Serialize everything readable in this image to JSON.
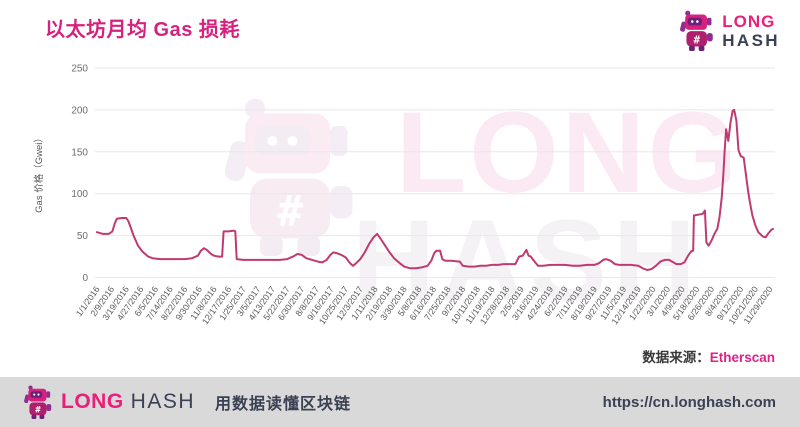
{
  "header": {
    "title": "以太坊月均 Gas 损耗"
  },
  "logo": {
    "top": "LONG",
    "bottom": "HASH"
  },
  "watermark": {
    "line1": "LONG",
    "line2": "HASH"
  },
  "chart_data": {
    "type": "line",
    "title": "以太坊月均 Gas 损耗",
    "ylabel": "Gas 价格（Gwei）",
    "xlabel": "",
    "ylim": [
      0,
      250
    ],
    "yticks": [
      0,
      50,
      100,
      150,
      200,
      250
    ],
    "grid": true,
    "legend": "none",
    "line_color": "#c03a72",
    "x_labels": [
      "1/1/2016",
      "2/9/2016",
      "3/19/2016",
      "4/27/2016",
      "6/5/2016",
      "7/14/2016",
      "8/22/2016",
      "9/30/2016",
      "11/8/2016",
      "12/17/2016",
      "1/25/2017",
      "3/5/2017",
      "4/13/2017",
      "5/22/2017",
      "6/30/2017",
      "8/8/2017",
      "9/16/2017",
      "10/25/2017",
      "12/3/2017",
      "1/11/2018",
      "2/19/2018",
      "3/30/2018",
      "5/8/2018",
      "6/16/2018",
      "7/25/2018",
      "9/2/2018",
      "10/11/2018",
      "11/19/2018",
      "12/28/2018",
      "2/5/2019",
      "3/16/2019",
      "4/24/2019",
      "6/2/2019",
      "7/11/2019",
      "8/19/2019",
      "9/27/2019",
      "11/5/2019",
      "12/14/2019",
      "1/22/2020",
      "3/1/2020",
      "4/9/2020",
      "5/18/2020",
      "6/26/2020",
      "8/4/2020",
      "9/12/2020",
      "10/21/2020",
      "11/29/2020"
    ],
    "series": [
      {
        "name": "月均 Gas 价格 (Gwei)",
        "points": [
          [
            0,
            54
          ],
          [
            0.4,
            52
          ],
          [
            0.8,
            52
          ],
          [
            1.05,
            55
          ],
          [
            1.2,
            64
          ],
          [
            1.35,
            70
          ],
          [
            1.7,
            71
          ],
          [
            2.0,
            71
          ],
          [
            2.15,
            67
          ],
          [
            2.5,
            50
          ],
          [
            2.8,
            38
          ],
          [
            3.1,
            31
          ],
          [
            3.5,
            25
          ],
          [
            3.8,
            23
          ],
          [
            4.3,
            22
          ],
          [
            5,
            22
          ],
          [
            5.5,
            22
          ],
          [
            6,
            22
          ],
          [
            6.5,
            23
          ],
          [
            6.9,
            26
          ],
          [
            7.1,
            32
          ],
          [
            7.3,
            35
          ],
          [
            7.5,
            33
          ],
          [
            7.8,
            28
          ],
          [
            8.0,
            26
          ],
          [
            8.3,
            25
          ],
          [
            8.55,
            25
          ],
          [
            8.65,
            55
          ],
          [
            9.0,
            55
          ],
          [
            9.35,
            56
          ],
          [
            9.45,
            55
          ],
          [
            9.55,
            22
          ],
          [
            10,
            21
          ],
          [
            10.5,
            21
          ],
          [
            11,
            21
          ],
          [
            11.5,
            21
          ],
          [
            12,
            21
          ],
          [
            12.5,
            21
          ],
          [
            13,
            22
          ],
          [
            13.4,
            25
          ],
          [
            13.7,
            28
          ],
          [
            14,
            27
          ],
          [
            14.3,
            23
          ],
          [
            14.7,
            21
          ],
          [
            15.1,
            19
          ],
          [
            15.4,
            18
          ],
          [
            15.7,
            21
          ],
          [
            15.95,
            27
          ],
          [
            16.15,
            30
          ],
          [
            16.4,
            29
          ],
          [
            16.7,
            27
          ],
          [
            17.0,
            24
          ],
          [
            17.3,
            17
          ],
          [
            17.5,
            14
          ],
          [
            17.7,
            17
          ],
          [
            18.0,
            22
          ],
          [
            18.3,
            30
          ],
          [
            18.6,
            40
          ],
          [
            18.9,
            48
          ],
          [
            19.15,
            52
          ],
          [
            19.4,
            46
          ],
          [
            19.7,
            38
          ],
          [
            20.0,
            30
          ],
          [
            20.3,
            23
          ],
          [
            20.7,
            17
          ],
          [
            21.0,
            13
          ],
          [
            21.4,
            11
          ],
          [
            21.8,
            11
          ],
          [
            22.2,
            12
          ],
          [
            22.6,
            14
          ],
          [
            22.85,
            20
          ],
          [
            23.05,
            29
          ],
          [
            23.2,
            32
          ],
          [
            23.45,
            32
          ],
          [
            23.6,
            22
          ],
          [
            23.8,
            20
          ],
          [
            24.2,
            20
          ],
          [
            24.8,
            19
          ],
          [
            25.0,
            14
          ],
          [
            25.4,
            13
          ],
          [
            25.8,
            13
          ],
          [
            26.2,
            14
          ],
          [
            26.6,
            14
          ],
          [
            27.0,
            15
          ],
          [
            27.4,
            15
          ],
          [
            27.8,
            16
          ],
          [
            28.2,
            16
          ],
          [
            28.6,
            16
          ],
          [
            28.85,
            25
          ],
          [
            29.1,
            26
          ],
          [
            29.35,
            33
          ],
          [
            29.5,
            26
          ],
          [
            29.65,
            25
          ],
          [
            29.95,
            18
          ],
          [
            30.15,
            14
          ],
          [
            30.5,
            14
          ],
          [
            31,
            15
          ],
          [
            31.5,
            15
          ],
          [
            32,
            15
          ],
          [
            32.5,
            14
          ],
          [
            33,
            14
          ],
          [
            33.5,
            15
          ],
          [
            34,
            15
          ],
          [
            34.3,
            17
          ],
          [
            34.6,
            21
          ],
          [
            34.8,
            22
          ],
          [
            35.1,
            20
          ],
          [
            35.4,
            16
          ],
          [
            35.7,
            15
          ],
          [
            36,
            15
          ],
          [
            36.5,
            15
          ],
          [
            37,
            14
          ],
          [
            37.3,
            11
          ],
          [
            37.6,
            9
          ],
          [
            37.9,
            10
          ],
          [
            38.2,
            14
          ],
          [
            38.5,
            19
          ],
          [
            38.8,
            21
          ],
          [
            39.1,
            21
          ],
          [
            39.4,
            18
          ],
          [
            39.6,
            16
          ],
          [
            39.9,
            16
          ],
          [
            40.15,
            18
          ],
          [
            40.4,
            26
          ],
          [
            40.6,
            31
          ],
          [
            40.75,
            32
          ],
          [
            40.8,
            74
          ],
          [
            41.1,
            75
          ],
          [
            41.4,
            76
          ],
          [
            41.55,
            80
          ],
          [
            41.65,
            42
          ],
          [
            41.8,
            38
          ],
          [
            42.0,
            44
          ],
          [
            42.2,
            52
          ],
          [
            42.4,
            58
          ],
          [
            42.55,
            72
          ],
          [
            42.7,
            95
          ],
          [
            42.8,
            120
          ],
          [
            42.9,
            150
          ],
          [
            43.0,
            177
          ],
          [
            43.15,
            163
          ],
          [
            43.3,
            185
          ],
          [
            43.45,
            199
          ],
          [
            43.55,
            200
          ],
          [
            43.7,
            187
          ],
          [
            43.85,
            152
          ],
          [
            44.0,
            145
          ],
          [
            44.2,
            143
          ],
          [
            44.35,
            123
          ],
          [
            44.5,
            103
          ],
          [
            44.65,
            88
          ],
          [
            44.8,
            74
          ],
          [
            45.0,
            62
          ],
          [
            45.2,
            54
          ],
          [
            45.5,
            49
          ],
          [
            45.7,
            48
          ],
          [
            45.9,
            53
          ],
          [
            46.1,
            57
          ],
          [
            46.2,
            58
          ]
        ]
      }
    ]
  },
  "source": {
    "label": "数据来源：",
    "value": "Etherscan"
  },
  "footer": {
    "brand_long": "LONG",
    "brand_hash": "HASH",
    "tagline": "用数据读懂区块链",
    "url": "https://cn.longhash.com"
  },
  "colors": {
    "brand_pink": "#ec1e7b",
    "title_pink": "#d6217f",
    "dark": "#3b4154",
    "footer_bg": "#d9d9d9",
    "grid": "#e8e8e8",
    "line": "#c03a72",
    "tick_text": "#6e6e6e"
  }
}
